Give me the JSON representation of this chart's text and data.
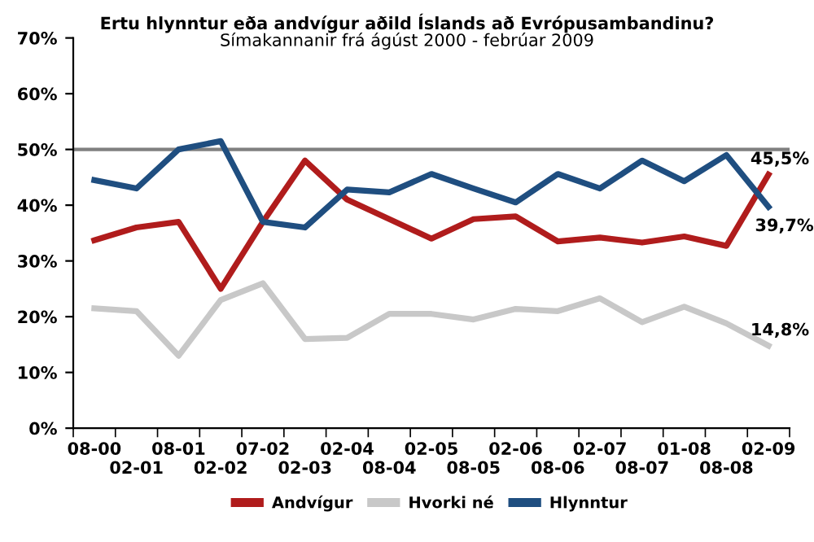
{
  "chart_data": {
    "type": "line",
    "title": "Ertu hlynntur eða andvígur aðild Íslands að Evrópusambandinu?",
    "subtitle": "Símakannanir frá ágúst 2000 - febrúar 2009",
    "categories": [
      "08-00",
      "02-01",
      "08-01",
      "02-02",
      "07-02",
      "02-03",
      "02-04",
      "08-04",
      "02-05",
      "08-05",
      "02-06",
      "08-06",
      "02-07",
      "08-07",
      "01-08",
      "08-08",
      "02-09"
    ],
    "series": [
      {
        "name": "Andvígur",
        "color": "#b01c1c",
        "values": [
          33.7,
          36,
          37,
          25,
          37,
          48,
          41,
          37.5,
          34,
          37.5,
          38,
          33.5,
          34.2,
          33.3,
          34.4,
          32.7,
          45.5
        ],
        "value_labels": [
          null,
          null,
          null,
          null,
          null,
          null,
          null,
          null,
          null,
          null,
          null,
          null,
          null,
          null,
          null,
          null,
          "45,5%"
        ]
      },
      {
        "name": "Hvorki né",
        "color": "#c8c8c8",
        "values": [
          21.5,
          21,
          13,
          23,
          26,
          16,
          16.2,
          20.5,
          20.5,
          19.5,
          21.4,
          21,
          23.3,
          19,
          21.8,
          18.8,
          14.8
        ],
        "value_labels": [
          null,
          null,
          null,
          null,
          null,
          null,
          null,
          null,
          null,
          null,
          null,
          null,
          null,
          null,
          null,
          null,
          "14,8%"
        ]
      },
      {
        "name": "Hlynntur",
        "color": "#1f4e80",
        "values": [
          44.5,
          43,
          50,
          51.5,
          37,
          36,
          42.8,
          42.3,
          45.6,
          43,
          40.5,
          45.6,
          43,
          48,
          44.3,
          49,
          39.7
        ],
        "value_labels": [
          null,
          null,
          null,
          null,
          null,
          null,
          null,
          null,
          null,
          null,
          null,
          null,
          null,
          null,
          null,
          null,
          "39,7%"
        ]
      }
    ],
    "ylim": [
      0,
      70
    ],
    "yticks": [
      {
        "value": 0,
        "label": "0%"
      },
      {
        "value": 10,
        "label": "10%"
      },
      {
        "value": 20,
        "label": "20%"
      },
      {
        "value": 30,
        "label": "30%"
      },
      {
        "value": 40,
        "label": "40%"
      },
      {
        "value": 50,
        "label": "50%"
      },
      {
        "value": 60,
        "label": "60%"
      },
      {
        "value": 70,
        "label": "70%"
      }
    ],
    "ref_lines": [
      {
        "axis": "y",
        "value": 50,
        "color": "#808080"
      }
    ],
    "grid": false,
    "legend": "bottom",
    "marker": "none",
    "line_style": "solid"
  }
}
